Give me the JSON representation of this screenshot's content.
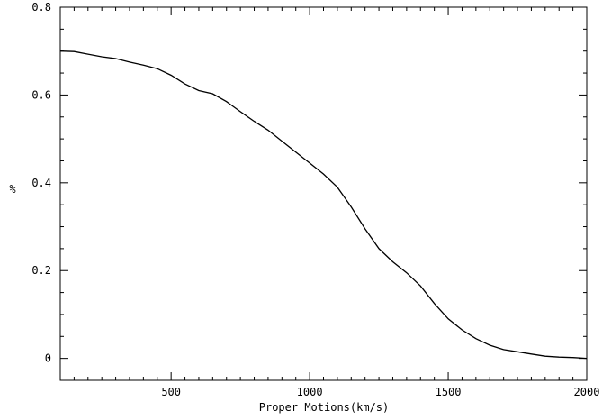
{
  "chart_data": {
    "type": "line",
    "title": "",
    "xlabel": "Proper Motions(km/s)",
    "ylabel": "%",
    "xlim": [
      100,
      2000
    ],
    "ylim": [
      -0.05,
      0.8
    ],
    "grid": false,
    "x_ticks": [
      500,
      1000,
      1500,
      2000
    ],
    "y_ticks": [
      0,
      0.2,
      0.4,
      0.6,
      0.8
    ],
    "x_tick_labels": [
      "500",
      "1000",
      "1500",
      "2000"
    ],
    "y_tick_labels": [
      "0",
      "0.2",
      "0.4",
      "0.6",
      "0.8"
    ],
    "series": [
      {
        "x": [
          100,
          150,
          200,
          250,
          300,
          350,
          400,
          450,
          500,
          550,
          600,
          650,
          700,
          750,
          800,
          850,
          900,
          950,
          1000,
          1050,
          1100,
          1150,
          1200,
          1250,
          1300,
          1350,
          1400,
          1450,
          1500,
          1550,
          1600,
          1650,
          1700,
          1750,
          1800,
          1850,
          1900,
          1950,
          2000
        ],
        "y": [
          0.7,
          0.699,
          0.693,
          0.687,
          0.683,
          0.675,
          0.668,
          0.66,
          0.645,
          0.625,
          0.61,
          0.603,
          0.585,
          0.562,
          0.54,
          0.52,
          0.495,
          0.47,
          0.445,
          0.42,
          0.39,
          0.345,
          0.295,
          0.25,
          0.22,
          0.195,
          0.165,
          0.125,
          0.09,
          0.065,
          0.045,
          0.03,
          0.02,
          0.015,
          0.01,
          0.005,
          0.003,
          0.002,
          0.0
        ]
      }
    ]
  }
}
